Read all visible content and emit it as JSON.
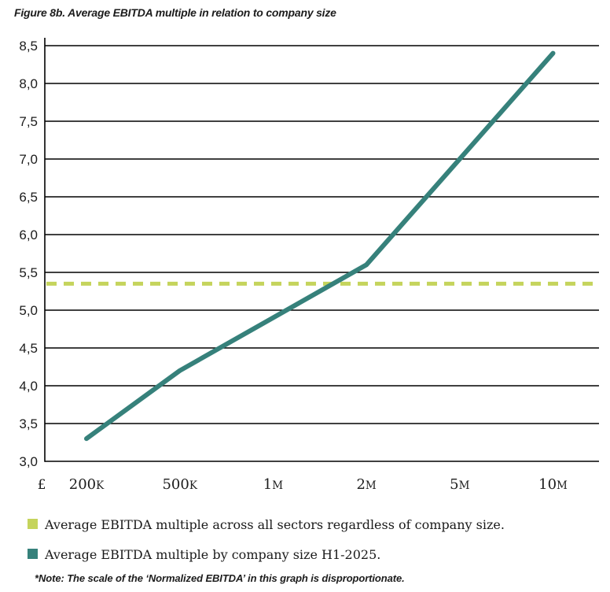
{
  "title": "Figure 8b. Average EBITDA multiple in relation to company size",
  "note": "*Note: The scale of the ‘Normalized EBITDA’ in this graph is disproportionate.",
  "colors": {
    "series_teal": "#36817b",
    "average_green": "#c5d45c",
    "grid": "#000000",
    "text": "#1c1c1c"
  },
  "chart_data": {
    "type": "line",
    "title": "Figure 8b. Average EBITDA multiple in relation to company size",
    "x_currency": "£",
    "categories": [
      "200K",
      "500K",
      "1M",
      "2M",
      "5M",
      "10M"
    ],
    "series": [
      {
        "name": "Average EBITDA multiple across all sectors regardless of company size.",
        "values": [
          5.35,
          5.35,
          5.35,
          5.35,
          5.35,
          5.35
        ],
        "color": "#c5d45c",
        "style": "dashed",
        "full_width": true
      },
      {
        "name": "Average EBITDA multiple by company size H1-2025.",
        "values": [
          3.3,
          4.2,
          4.9,
          5.6,
          7.0,
          8.4
        ],
        "color": "#36817b",
        "style": "solid",
        "full_width": false
      }
    ],
    "xlabel": "",
    "ylabel": "",
    "ylim": [
      3.0,
      8.5
    ],
    "ytick_step": 0.5,
    "ytick_labels": [
      "3,0",
      "3,5",
      "4,0",
      "4,5",
      "5,0",
      "5,5",
      "6,0",
      "6,5",
      "7,0",
      "7,5",
      "8,0",
      "8,5"
    ],
    "grid": "horizontal",
    "legend_position": "bottom"
  },
  "legend": [
    {
      "label": "Average EBITDA multiple across all sectors regardless of company size.",
      "color": "#c5d45c"
    },
    {
      "label": "Average EBITDA multiple by company size H1-2025.",
      "color": "#36817b"
    }
  ]
}
